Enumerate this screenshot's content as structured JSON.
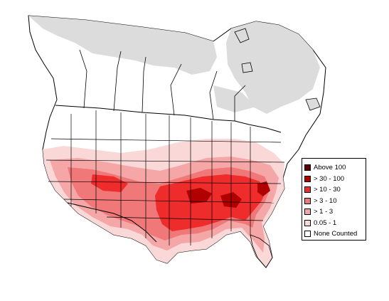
{
  "legend": {
    "items": [
      {
        "label": "Above 100",
        "color": "#5a0000"
      },
      {
        "label": "> 30 - 100",
        "color": "#b00000"
      },
      {
        "label": "> 10 - 30",
        "color": "#ee2c2c"
      },
      {
        "label": "> 3 - 10",
        "color": "#f07878"
      },
      {
        "label": "> 1 - 3",
        "color": "#f5a6a6"
      },
      {
        "label": "0.05 - 1",
        "color": "#fbd8d8"
      },
      {
        "label": "None Counted",
        "color": "#ffffff"
      }
    ]
  },
  "map": {
    "colors": {
      "none_counted_land": "#ffffff",
      "not_surveyed": "#dcdcdc",
      "outline": "#000000"
    }
  }
}
